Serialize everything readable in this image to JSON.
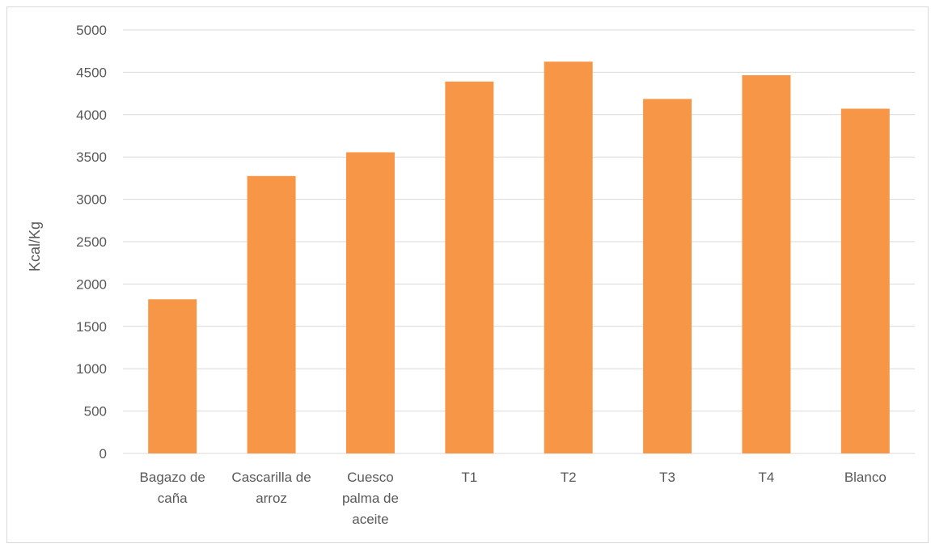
{
  "chart_data": {
    "type": "bar",
    "title": "",
    "xlabel": "",
    "ylabel": "Kcal/Kg",
    "ylim": [
      0,
      5000
    ],
    "yticks": [
      0,
      500,
      1000,
      1500,
      2000,
      2500,
      3000,
      3500,
      4000,
      4500,
      5000
    ],
    "grid": true,
    "legend": "none",
    "bar_color": "#F79646",
    "categories": [
      [
        "Bagazo de",
        "caña"
      ],
      [
        "Cascarilla de",
        "arroz"
      ],
      [
        "Cuesco",
        "palma de",
        "aceite"
      ],
      [
        "T1"
      ],
      [
        "T2"
      ],
      [
        "T3"
      ],
      [
        "T4"
      ],
      [
        "Blanco"
      ]
    ],
    "values": [
      1820,
      3275,
      3555,
      4390,
      4625,
      4185,
      4465,
      4070
    ]
  }
}
